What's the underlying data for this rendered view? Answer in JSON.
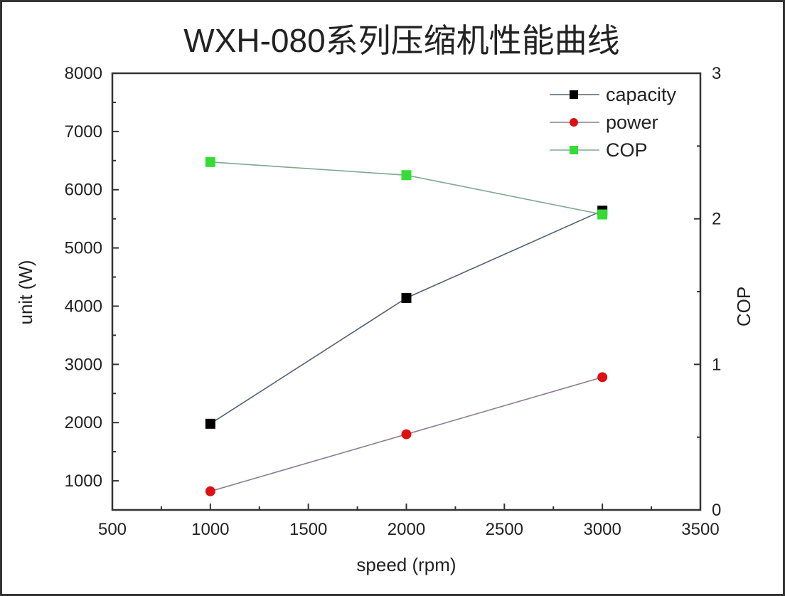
{
  "chart_data": {
    "type": "line",
    "title": "WXH-080系列压缩机性能曲线",
    "xlabel": "speed (rpm)",
    "ylabel": "unit (W)",
    "y2label": "COP",
    "xlim": [
      500,
      3500
    ],
    "ylim": [
      500,
      8000
    ],
    "y2lim": [
      0,
      3
    ],
    "xticks": [
      "500",
      "1000",
      "1500",
      "2000",
      "2500",
      "3000",
      "3500"
    ],
    "yticks": [
      "1000",
      "2000",
      "3000",
      "4000",
      "5000",
      "6000",
      "7000",
      "8000"
    ],
    "y2ticks": [
      "0",
      "1",
      "2",
      "3"
    ],
    "grid": false,
    "legend_position": "top-right",
    "x": [
      1000,
      2000,
      3000
    ],
    "series": [
      {
        "name": "capacity",
        "axis": "left",
        "marker": "square",
        "color": "#000000",
        "line_color": "#556070",
        "values": [
          1980,
          4140,
          5640
        ]
      },
      {
        "name": "power",
        "axis": "left",
        "marker": "circle",
        "color": "#dd1111",
        "line_color": "#8a7f8f",
        "values": [
          820,
          1800,
          2780
        ]
      },
      {
        "name": "COP",
        "axis": "right",
        "marker": "square",
        "color": "#33dd33",
        "line_color": "#7fa890",
        "values": [
          2.39,
          2.3,
          2.03
        ]
      }
    ]
  }
}
